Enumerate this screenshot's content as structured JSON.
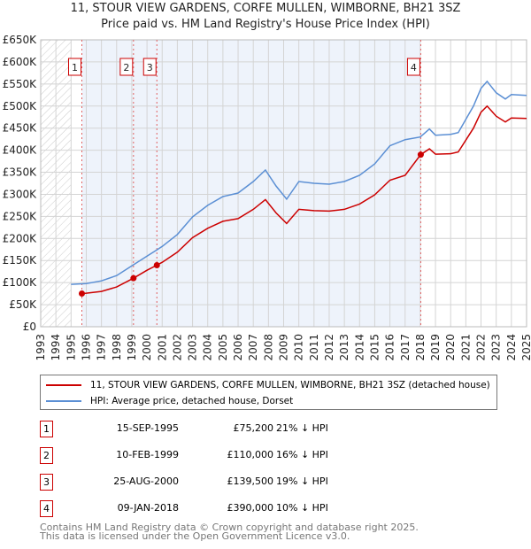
{
  "chart_data": {
    "type": "line",
    "title": "11, STOUR VIEW GARDENS, CORFE MULLEN, WIMBORNE, BH21 3SZ",
    "subtitle": "Price paid vs. HM Land Registry's House Price Index (HPI)",
    "xlim": [
      1993,
      2025
    ],
    "ylim": [
      0,
      650000
    ],
    "x_ticks": [
      1993,
      1994,
      1995,
      1996,
      1997,
      1998,
      1999,
      2000,
      2001,
      2002,
      2003,
      2004,
      2005,
      2006,
      2007,
      2008,
      2009,
      2010,
      2011,
      2012,
      2013,
      2014,
      2015,
      2016,
      2017,
      2018,
      2019,
      2020,
      2021,
      2022,
      2023,
      2024,
      2025
    ],
    "y_ticks": [
      0,
      50000,
      100000,
      150000,
      200000,
      250000,
      300000,
      350000,
      400000,
      450000,
      500000,
      550000,
      600000,
      650000
    ],
    "y_tick_labels": [
      "£0",
      "£50K",
      "£100K",
      "£150K",
      "£200K",
      "£250K",
      "£300K",
      "£350K",
      "£400K",
      "£450K",
      "£500K",
      "£550K",
      "£600K",
      "£650K"
    ],
    "grid": true,
    "hatched_range": [
      1993,
      1995
    ],
    "shaded_range": [
      1995.71,
      2018.03
    ],
    "series": [
      {
        "name": "11, STOUR VIEW GARDENS, CORFE MULLEN, WIMBORNE, BH21 3SZ (detached house)",
        "color": "#cc0000",
        "x": [
          1995.71,
          1996,
          1997,
          1998,
          1999.11,
          2000,
          2000.65,
          2001,
          2002,
          2003,
          2004,
          2005,
          2006,
          2007,
          2007.8,
          2008.5,
          2009.2,
          2010,
          2011,
          2012,
          2013,
          2014,
          2015,
          2016,
          2017,
          2018.03,
          2018.6,
          2019,
          2020,
          2020.5,
          2021,
          2021.5,
          2022,
          2022.4,
          2023,
          2023.6,
          2024,
          2025
        ],
        "y": [
          75200,
          76000,
          80000,
          90000,
          110000,
          128000,
          139500,
          146000,
          169000,
          202000,
          223000,
          239000,
          245000,
          266000,
          288000,
          258000,
          234000,
          266000,
          263000,
          262000,
          266000,
          278000,
          299000,
          332000,
          343000,
          390000,
          403000,
          391000,
          392000,
          396000,
          423000,
          450000,
          486000,
          500000,
          477000,
          464000,
          473000,
          472000
        ]
      },
      {
        "name": "HPI: Average price, detached house, Dorset",
        "color": "#5b8fd4",
        "x": [
          1995,
          1996,
          1997,
          1998,
          1999,
          2000,
          2000.6,
          2001,
          2002,
          2003,
          2004,
          2005,
          2006,
          2007,
          2007.8,
          2008.5,
          2009.2,
          2010,
          2011,
          2012,
          2013,
          2014,
          2015,
          2016,
          2017,
          2018,
          2018.6,
          2019,
          2020,
          2020.5,
          2021,
          2021.5,
          2022,
          2022.4,
          2023,
          2023.6,
          2024,
          2025
        ],
        "y": [
          96000,
          98000,
          104000,
          116000,
          138000,
          160000,
          173000,
          182000,
          209000,
          249000,
          275000,
          295000,
          303000,
          329000,
          355000,
          319000,
          289000,
          329000,
          325000,
          323000,
          329000,
          343000,
          369000,
          410000,
          424000,
          430000,
          448000,
          434000,
          436000,
          440000,
          470000,
          500000,
          540000,
          556000,
          530000,
          516000,
          526000,
          524000
        ]
      }
    ],
    "sales": [
      {
        "label": "1",
        "x": 1995.71,
        "y": 75200
      },
      {
        "label": "2",
        "x": 1999.11,
        "y": 110000
      },
      {
        "label": "3",
        "x": 2000.65,
        "y": 139500
      },
      {
        "label": "4",
        "x": 2018.03,
        "y": 390000
      }
    ],
    "legend_placement": "below"
  },
  "legend": {
    "property": "11, STOUR VIEW GARDENS, CORFE MULLEN, WIMBORNE, BH21 3SZ (detached house)",
    "hpi": "HPI: Average price, detached house, Dorset"
  },
  "table": [
    {
      "num": "1",
      "date": "15-SEP-1995",
      "price": "£75,200",
      "hpi": "21% ↓ HPI"
    },
    {
      "num": "2",
      "date": "10-FEB-1999",
      "price": "£110,000",
      "hpi": "16% ↓ HPI"
    },
    {
      "num": "3",
      "date": "25-AUG-2000",
      "price": "£139,500",
      "hpi": "19% ↓ HPI"
    },
    {
      "num": "4",
      "date": "09-JAN-2018",
      "price": "£390,000",
      "hpi": "10% ↓ HPI"
    }
  ],
  "footer": {
    "line1": "Contains HM Land Registry data © Crown copyright and database right 2025.",
    "line2": "This data is licensed under the Open Government Licence v3.0."
  },
  "colors": {
    "property": "#cc0000",
    "hpi": "#5b8fd4",
    "shade": "#eef3fb"
  }
}
